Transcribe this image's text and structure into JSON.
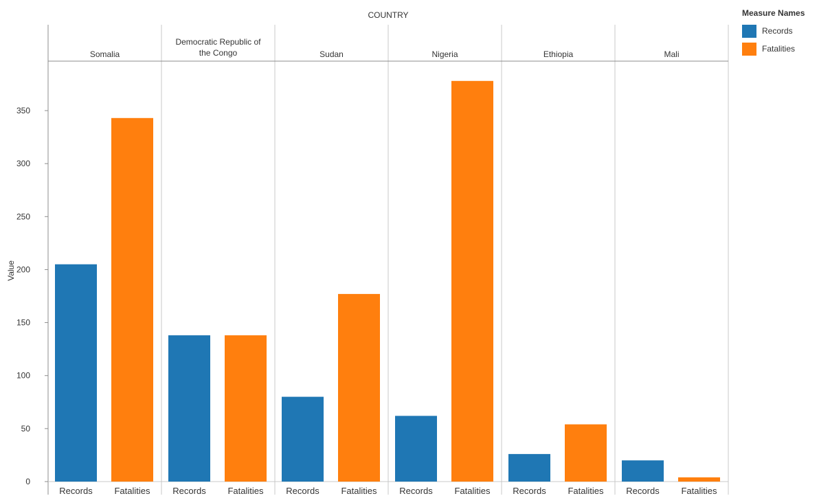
{
  "chart_data": {
    "type": "bar",
    "facet_title": "COUNTRY",
    "ylabel": "Value",
    "ylim": [
      0,
      395
    ],
    "yticks": [
      0,
      50,
      100,
      150,
      200,
      250,
      300,
      350
    ],
    "measures": [
      "Records",
      "Fatalities"
    ],
    "colors": {
      "Records": "#1f77b4",
      "Fatalities": "#ff7f0e"
    },
    "countries": [
      {
        "name": "Somalia",
        "name_lines": [
          "Somalia"
        ],
        "values": {
          "Records": 205,
          "Fatalities": 343
        }
      },
      {
        "name": "Democratic Republic of the Congo",
        "name_lines": [
          "Democratic Republic of",
          "the Congo"
        ],
        "values": {
          "Records": 138,
          "Fatalities": 138
        }
      },
      {
        "name": "Sudan",
        "name_lines": [
          "Sudan"
        ],
        "values": {
          "Records": 80,
          "Fatalities": 177
        }
      },
      {
        "name": "Nigeria",
        "name_lines": [
          "Nigeria"
        ],
        "values": {
          "Records": 62,
          "Fatalities": 378
        }
      },
      {
        "name": "Ethiopia",
        "name_lines": [
          "Ethiopia"
        ],
        "values": {
          "Records": 26,
          "Fatalities": 54
        }
      },
      {
        "name": "Mali",
        "name_lines": [
          "Mali"
        ],
        "values": {
          "Records": 20,
          "Fatalities": 4
        }
      }
    ],
    "legend": {
      "title": "Measure Names",
      "position": "top-right",
      "items": [
        {
          "label": "Records",
          "color": "#1f77b4"
        },
        {
          "label": "Fatalities",
          "color": "#ff7f0e"
        }
      ]
    },
    "grid": false
  }
}
